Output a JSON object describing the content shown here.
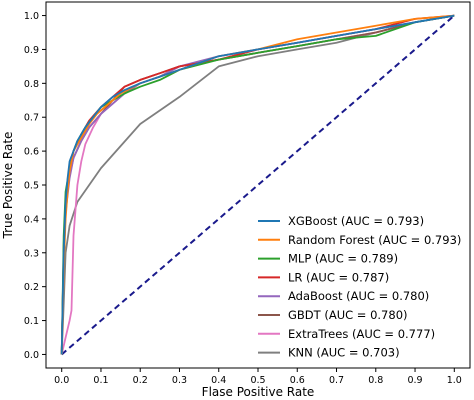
{
  "chart_data": {
    "type": "line",
    "xlabel": "Flase Positive Rate",
    "ylabel": "True Positive Rate",
    "xlim": [
      -0.04,
      1.04
    ],
    "ylim": [
      -0.04,
      1.04
    ],
    "xticks": [
      "0.0",
      "0.1",
      "0.2",
      "0.3",
      "0.4",
      "0.5",
      "0.6",
      "0.7",
      "0.8",
      "0.9",
      "1.0"
    ],
    "yticks": [
      "0.0",
      "0.1",
      "0.2",
      "0.3",
      "0.4",
      "0.5",
      "0.6",
      "0.7",
      "0.8",
      "0.9",
      "1.0"
    ],
    "legend_position": "lower-right",
    "baseline": {
      "x": [
        0,
        1
      ],
      "y": [
        0,
        1
      ],
      "color": "#1a1a8c",
      "style": "dashed"
    },
    "series": [
      {
        "name": "XGBoost (AUC = 0.793)",
        "color": "#1f77b4",
        "x": [
          0,
          0.005,
          0.01,
          0.015,
          0.02,
          0.03,
          0.04,
          0.06,
          0.08,
          0.1,
          0.13,
          0.16,
          0.2,
          0.25,
          0.3,
          0.35,
          0.4,
          0.5,
          0.6,
          0.7,
          0.8,
          0.9,
          1.0
        ],
        "y": [
          0,
          0.3,
          0.45,
          0.52,
          0.57,
          0.6,
          0.63,
          0.67,
          0.7,
          0.73,
          0.76,
          0.78,
          0.8,
          0.82,
          0.84,
          0.86,
          0.88,
          0.9,
          0.92,
          0.94,
          0.96,
          0.98,
          1.0
        ]
      },
      {
        "name": "Random Forest (AUC = 0.793)",
        "color": "#ff7f0e",
        "x": [
          0,
          0.005,
          0.01,
          0.015,
          0.02,
          0.03,
          0.05,
          0.07,
          0.09,
          0.12,
          0.15,
          0.2,
          0.25,
          0.3,
          0.35,
          0.4,
          0.5,
          0.6,
          0.7,
          0.8,
          0.9,
          1.0
        ],
        "y": [
          0,
          0.25,
          0.4,
          0.48,
          0.54,
          0.6,
          0.64,
          0.68,
          0.71,
          0.74,
          0.77,
          0.8,
          0.82,
          0.84,
          0.86,
          0.88,
          0.9,
          0.93,
          0.95,
          0.97,
          0.99,
          1.0
        ]
      },
      {
        "name": "MLP (AUC = 0.789)",
        "color": "#2ca02c",
        "x": [
          0,
          0.005,
          0.01,
          0.02,
          0.03,
          0.04,
          0.06,
          0.08,
          0.1,
          0.13,
          0.16,
          0.2,
          0.25,
          0.3,
          0.4,
          0.5,
          0.6,
          0.7,
          0.8,
          0.9,
          1.0
        ],
        "y": [
          0,
          0.35,
          0.48,
          0.55,
          0.6,
          0.63,
          0.67,
          0.7,
          0.73,
          0.75,
          0.77,
          0.79,
          0.81,
          0.84,
          0.87,
          0.89,
          0.91,
          0.93,
          0.94,
          0.98,
          1.0
        ]
      },
      {
        "name": "LR (AUC = 0.787)",
        "color": "#d62728",
        "x": [
          0,
          0.005,
          0.01,
          0.02,
          0.03,
          0.05,
          0.07,
          0.1,
          0.13,
          0.16,
          0.2,
          0.25,
          0.3,
          0.4,
          0.5,
          0.6,
          0.7,
          0.8,
          0.9,
          1.0
        ],
        "y": [
          0,
          0.32,
          0.46,
          0.55,
          0.6,
          0.65,
          0.69,
          0.73,
          0.76,
          0.79,
          0.81,
          0.83,
          0.85,
          0.87,
          0.9,
          0.92,
          0.94,
          0.96,
          0.99,
          1.0
        ]
      },
      {
        "name": "AdaBoost (AUC = 0.780)",
        "color": "#9467bd",
        "x": [
          0,
          0.005,
          0.01,
          0.02,
          0.03,
          0.05,
          0.07,
          0.1,
          0.13,
          0.16,
          0.2,
          0.25,
          0.3,
          0.4,
          0.5,
          0.6,
          0.7,
          0.8,
          0.9,
          1.0
        ],
        "y": [
          0,
          0.28,
          0.42,
          0.52,
          0.58,
          0.63,
          0.67,
          0.71,
          0.74,
          0.77,
          0.8,
          0.82,
          0.85,
          0.88,
          0.9,
          0.92,
          0.94,
          0.96,
          0.98,
          1.0
        ]
      },
      {
        "name": "GBDT (AUC = 0.780)",
        "color": "#8c564b",
        "x": [
          0,
          0.005,
          0.01,
          0.02,
          0.03,
          0.05,
          0.07,
          0.1,
          0.13,
          0.16,
          0.2,
          0.25,
          0.3,
          0.4,
          0.5,
          0.6,
          0.7,
          0.8,
          0.9,
          1.0
        ],
        "y": [
          0,
          0.3,
          0.44,
          0.53,
          0.58,
          0.63,
          0.67,
          0.71,
          0.75,
          0.79,
          0.81,
          0.83,
          0.85,
          0.87,
          0.89,
          0.91,
          0.93,
          0.95,
          0.98,
          1.0
        ]
      },
      {
        "name": "ExtraTrees (AUC = 0.777)",
        "color": "#e377c2",
        "x": [
          0,
          0.01,
          0.02,
          0.025,
          0.03,
          0.04,
          0.05,
          0.06,
          0.08,
          0.1,
          0.13,
          0.16,
          0.2,
          0.25,
          0.3,
          0.4,
          0.5,
          0.6,
          0.7,
          0.8,
          0.9,
          1.0
        ],
        "y": [
          0,
          0.05,
          0.1,
          0.13,
          0.35,
          0.5,
          0.57,
          0.62,
          0.67,
          0.71,
          0.74,
          0.77,
          0.8,
          0.82,
          0.85,
          0.87,
          0.89,
          0.91,
          0.93,
          0.95,
          0.98,
          1.0
        ]
      },
      {
        "name": "KNN (AUC = 0.703)",
        "color": "#7f7f7f",
        "x": [
          0,
          0.005,
          0.01,
          0.02,
          0.04,
          0.1,
          0.2,
          0.3,
          0.4,
          0.5,
          0.6,
          0.7,
          0.8,
          0.9,
          1.0
        ],
        "y": [
          0,
          0.15,
          0.3,
          0.38,
          0.45,
          0.55,
          0.68,
          0.76,
          0.85,
          0.88,
          0.9,
          0.92,
          0.95,
          0.98,
          1.0
        ]
      }
    ]
  }
}
